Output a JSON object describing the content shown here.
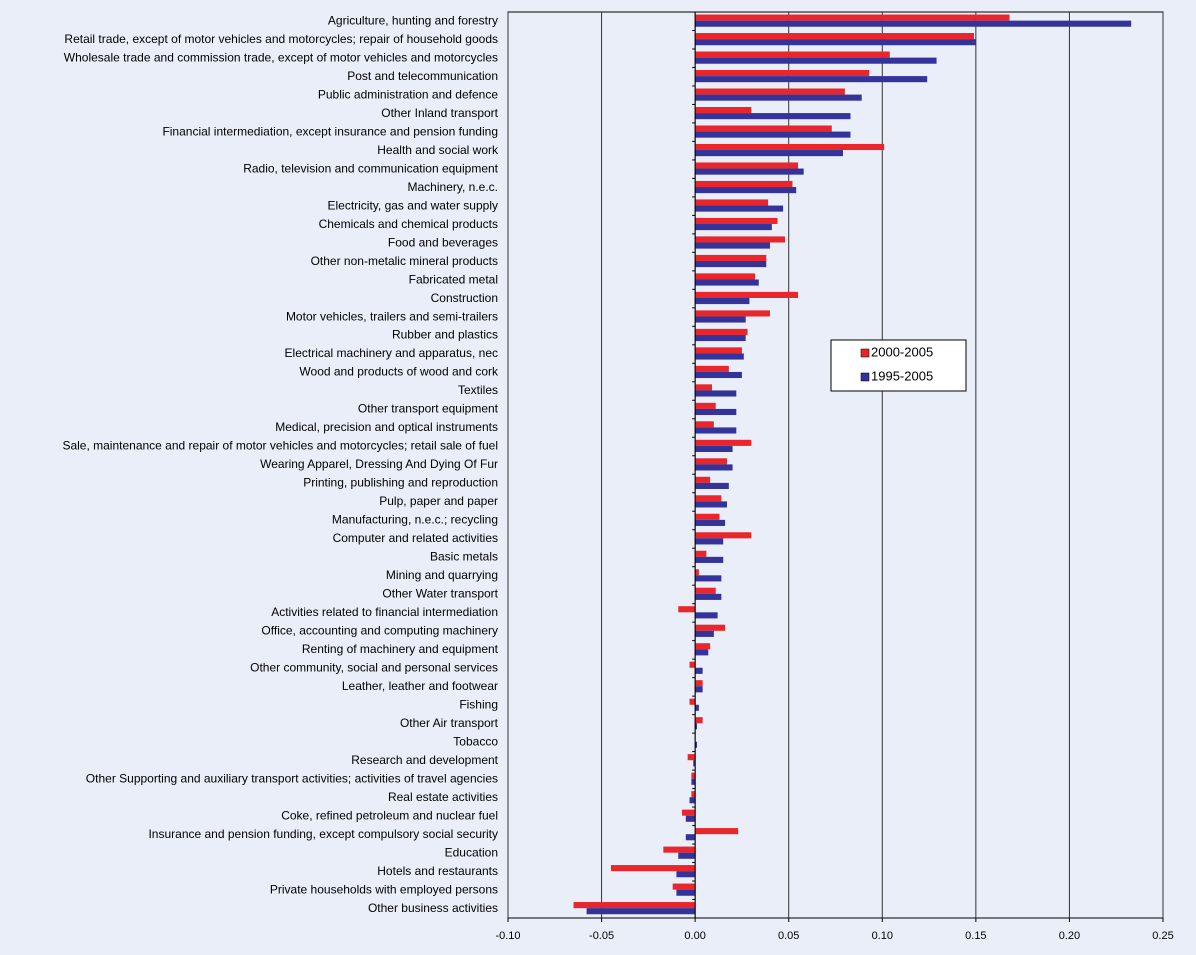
{
  "chart_data": {
    "type": "barh",
    "categories": [
      "Agriculture, hunting and forestry",
      "Retail trade, except of motor vehicles and motorcycles; repair of household goods",
      "Wholesale trade and commission trade, except of motor vehicles and motorcycles",
      "Post and telecommunication",
      "Public administration and defence",
      "Other Inland transport",
      "Financial intermediation, except insurance and pension funding",
      "Health and social work",
      "Radio, television and communication equipment",
      "Machinery, n.e.c.",
      "Electricity, gas and water supply",
      "Chemicals and chemical products",
      "Food and beverages",
      "Other non-metalic mineral products",
      "Fabricated metal",
      "Construction",
      "Motor vehicles, trailers and semi-trailers",
      "Rubber and plastics",
      "Electrical machinery and apparatus, nec",
      "Wood and products of wood and cork",
      "Textiles",
      "Other transport equipment",
      "Medical, precision and optical instruments",
      "Sale, maintenance and repair of motor vehicles and motorcycles; retail sale of fuel",
      "Wearing Apparel, Dressing And Dying Of Fur",
      "Printing, publishing and reproduction",
      "Pulp, paper and paper",
      "Manufacturing, n.e.c.; recycling",
      "Computer and related activities",
      "Basic metals",
      "Mining and quarrying",
      "Other Water transport",
      "Activities related to financial intermediation",
      "Office, accounting and computing machinery",
      "Renting of machinery and equipment",
      "Other community, social and personal services",
      "Leather, leather and footwear",
      "Fishing",
      "Other Air transport",
      "Tobacco",
      "Research and development",
      "Other Supporting and auxiliary transport activities; activities of travel agencies",
      "Real estate activities",
      "Coke, refined petroleum and nuclear fuel",
      "Insurance and pension funding, except compulsory social security",
      "Education",
      "Hotels and restaurants",
      "Private households with employed persons",
      "Other business activities"
    ],
    "series": [
      {
        "name": "2000-2005",
        "color": "#e8262c",
        "values": [
          0.168,
          0.149,
          0.104,
          0.093,
          0.08,
          0.03,
          0.073,
          0.101,
          0.055,
          0.052,
          0.039,
          0.044,
          0.048,
          0.038,
          0.032,
          0.055,
          0.04,
          0.028,
          0.025,
          0.018,
          0.009,
          0.011,
          0.01,
          0.03,
          0.017,
          0.008,
          0.014,
          0.013,
          0.03,
          0.006,
          0.002,
          0.011,
          -0.009,
          0.016,
          0.008,
          -0.003,
          0.004,
          -0.003,
          0.004,
          0.0,
          -0.004,
          -0.002,
          -0.002,
          -0.007,
          0.023,
          -0.017,
          -0.045,
          -0.012,
          -0.065
        ]
      },
      {
        "name": "1995-2005",
        "color": "#333399",
        "values": [
          0.233,
          0.15,
          0.129,
          0.124,
          0.089,
          0.083,
          0.083,
          0.079,
          0.058,
          0.054,
          0.047,
          0.041,
          0.04,
          0.038,
          0.034,
          0.029,
          0.027,
          0.027,
          0.026,
          0.025,
          0.022,
          0.022,
          0.022,
          0.02,
          0.02,
          0.018,
          0.017,
          0.016,
          0.015,
          0.015,
          0.014,
          0.014,
          0.012,
          0.01,
          0.007,
          0.004,
          0.004,
          0.002,
          0.001,
          0.001,
          -0.001,
          -0.002,
          -0.003,
          -0.005,
          -0.005,
          -0.009,
          -0.01,
          -0.01,
          -0.058
        ]
      }
    ],
    "xlim": [
      -0.1,
      0.25
    ],
    "xticks": [
      {
        "value": -0.1,
        "label": "-0.10"
      },
      {
        "value": -0.05,
        "label": "-0.05"
      },
      {
        "value": 0,
        "label": "0.00"
      },
      {
        "value": 0.05,
        "label": "0.05"
      },
      {
        "value": 0.1,
        "label": "0.10"
      },
      {
        "value": 0.15,
        "label": "0.15"
      },
      {
        "value": 0.2,
        "label": "0.20"
      },
      {
        "value": 0.25,
        "label": "0.25"
      }
    ],
    "grid": true,
    "legend": "center-right"
  }
}
